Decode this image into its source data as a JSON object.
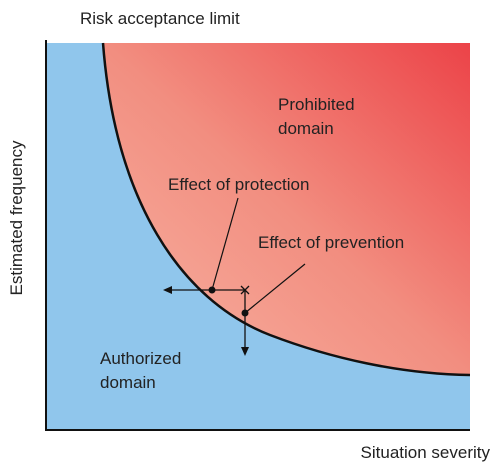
{
  "title": "Risk acceptance limit",
  "y_axis_label": "Estimated frequency",
  "x_axis_label": "Situation severity",
  "prohibited_label": [
    "Prohibited",
    "domain"
  ],
  "authorized_label": [
    "Authorized",
    "domain"
  ],
  "protection_label": "Effect of protection",
  "prevention_label": "Effect of prevention"
}
